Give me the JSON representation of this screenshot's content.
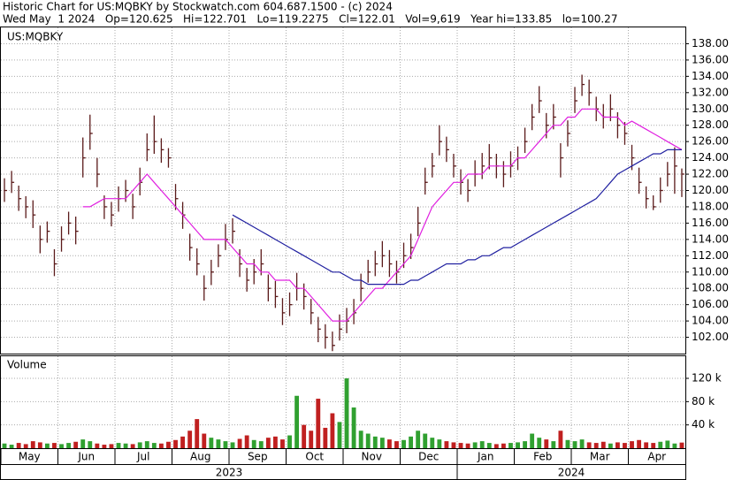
{
  "chart_data": {
    "type": "ohlc",
    "title": "Historic Chart for US:MQBKY by Stockwatch.com 604.687.1500 - (c) 2024",
    "subtitle": "Wed May  1 2024   Op=120.625   Hi=122.701   Lo=119.2275   Cl=122.01   Vol=9,619   Year hi=133.85   lo=100.27",
    "symbol": "US:MQBKY",
    "volume_title": "Volume",
    "months": [
      "May",
      null,
      null,
      null,
      null,
      null,
      null,
      null,
      "Jun",
      null,
      null,
      null,
      null,
      null,
      null,
      null,
      "Jul",
      null,
      null,
      null,
      null,
      null,
      null,
      null,
      "Aug",
      null,
      null,
      null,
      null,
      null,
      null,
      null,
      "Sep",
      null,
      null,
      null,
      null,
      null,
      null,
      null,
      "Oct",
      null,
      null,
      null,
      null,
      null,
      null,
      null,
      "Nov",
      null,
      null,
      null,
      null,
      null,
      null,
      null,
      "Dec",
      null,
      null,
      null,
      null,
      null,
      null,
      null,
      "Jan",
      null,
      null,
      null,
      null,
      null,
      null,
      null,
      "Feb",
      null,
      null,
      null,
      null,
      null,
      null,
      null,
      "Mar",
      null,
      null,
      null,
      null,
      null,
      null,
      null,
      "Apr",
      null,
      null,
      null,
      null,
      null,
      null,
      null
    ],
    "years": [
      "2023",
      null,
      null,
      null,
      null,
      null,
      null,
      null,
      null,
      null,
      null,
      null,
      null,
      null,
      null,
      null,
      null,
      null,
      null,
      null,
      null,
      null,
      null,
      null,
      null,
      null,
      null,
      null,
      null,
      null,
      null,
      null,
      null,
      null,
      null,
      null,
      null,
      null,
      null,
      null,
      null,
      null,
      null,
      null,
      null,
      null,
      null,
      null,
      null,
      null,
      null,
      null,
      null,
      null,
      null,
      null,
      null,
      null,
      null,
      null,
      null,
      null,
      null,
      null,
      "2024",
      null,
      null,
      null,
      null,
      null,
      null,
      null,
      null,
      null,
      null,
      null,
      null,
      null,
      null,
      null,
      null,
      null,
      null,
      null,
      null,
      null,
      null,
      null,
      null,
      null,
      null,
      null,
      null,
      null,
      null,
      null
    ],
    "high": [
      121.5,
      122.4,
      120.6,
      119.3,
      118.8,
      115.7,
      116.2,
      112.8,
      115.6,
      117.4,
      116.8,
      126.5,
      129.3,
      124.0,
      119.4,
      118.6,
      120.5,
      121.3,
      119.6,
      122.8,
      127.0,
      129.2,
      126.4,
      125.2,
      120.8,
      118.6,
      114.7,
      112.9,
      109.6,
      111.5,
      113.4,
      115.9,
      116.6,
      112.8,
      110.5,
      111.6,
      112.8,
      109.7,
      108.9,
      106.8,
      107.5,
      109.9,
      108.6,
      106.7,
      104.5,
      103.6,
      102.7,
      104.8,
      105.6,
      106.7,
      109.8,
      111.5,
      112.6,
      113.8,
      112.7,
      111.4,
      113.6,
      114.7,
      118.0,
      122.8,
      124.6,
      128.0,
      126.6,
      124.5,
      122.6,
      121.4,
      123.7,
      124.6,
      125.7,
      124.5,
      123.6,
      124.8,
      125.4,
      127.7,
      130.6,
      132.8,
      129.5,
      130.6,
      125.8,
      128.6,
      132.7,
      134.2,
      133.6,
      131.5,
      130.6,
      131.8,
      129.6,
      128.4,
      125.6,
      122.8,
      120.5,
      119.4,
      121.6,
      123.5,
      125.3,
      122.7
    ],
    "low": [
      118.6,
      119.7,
      117.5,
      116.6,
      115.4,
      112.3,
      113.6,
      109.5,
      112.5,
      114.6,
      113.4,
      121.6,
      125.0,
      120.4,
      116.5,
      115.6,
      117.4,
      118.6,
      116.5,
      119.4,
      123.6,
      124.5,
      123.4,
      122.8,
      117.6,
      115.3,
      111.4,
      109.6,
      106.5,
      108.4,
      110.6,
      112.7,
      113.5,
      109.4,
      107.6,
      108.5,
      109.6,
      106.4,
      105.6,
      103.5,
      104.6,
      106.5,
      105.4,
      103.6,
      101.4,
      100.6,
      100.3,
      101.6,
      102.5,
      103.6,
      106.4,
      108.7,
      109.5,
      110.6,
      109.4,
      108.6,
      110.5,
      111.6,
      114.4,
      119.5,
      121.6,
      124.3,
      123.5,
      121.6,
      119.5,
      118.6,
      120.5,
      121.4,
      122.6,
      121.5,
      120.4,
      121.6,
      122.5,
      124.6,
      127.4,
      129.5,
      126.4,
      127.5,
      121.6,
      125.4,
      129.5,
      131.6,
      130.4,
      128.5,
      127.6,
      128.5,
      126.4,
      125.6,
      122.5,
      119.6,
      117.8,
      117.6,
      118.5,
      120.5,
      119.6,
      119.2
    ],
    "close": [
      120,
      121,
      119,
      118,
      117,
      114,
      115,
      111,
      114,
      116,
      115,
      124,
      127,
      122,
      118,
      117,
      119,
      120,
      118,
      121,
      125,
      126,
      125,
      124,
      119,
      117,
      113,
      111,
      108,
      110,
      112,
      114,
      115,
      111,
      109,
      110,
      111,
      108,
      107,
      105,
      106,
      108,
      107,
      105,
      103,
      102,
      101,
      103,
      104,
      105,
      108,
      110,
      111,
      112,
      111,
      110,
      112,
      113,
      116,
      121,
      123,
      126,
      125,
      123,
      121,
      120,
      122,
      123,
      124,
      123,
      122,
      123,
      124,
      126,
      129,
      131,
      128,
      129,
      124,
      127,
      131,
      133,
      132,
      130,
      129,
      130,
      128,
      127,
      124,
      121,
      119,
      118,
      120,
      122,
      123,
      122.01
    ],
    "ma_short": {
      "color": "#e020e0",
      "values": [
        null,
        null,
        null,
        null,
        null,
        null,
        null,
        null,
        null,
        null,
        null,
        118,
        118,
        118.5,
        119,
        119,
        119,
        119,
        120,
        121,
        122,
        121,
        120,
        119,
        118,
        117,
        116,
        115,
        114,
        114,
        114,
        114,
        113,
        112,
        111,
        111,
        110,
        110,
        109,
        109,
        109,
        108,
        108,
        107,
        106,
        105,
        104,
        104,
        104,
        105,
        106,
        107,
        108,
        108,
        109,
        110,
        111,
        112,
        114,
        116,
        118,
        119,
        120,
        121,
        121,
        122,
        122,
        122,
        123,
        123,
        123,
        123,
        124,
        124,
        125,
        126,
        127,
        128,
        128,
        129,
        129,
        130,
        130,
        130,
        129,
        129,
        129,
        128,
        128.5,
        128,
        127.5,
        127,
        126.5,
        126,
        125.5,
        125
      ]
    },
    "ma_long": {
      "color": "#2020a0",
      "values": [
        null,
        null,
        null,
        null,
        null,
        null,
        null,
        null,
        null,
        null,
        null,
        null,
        null,
        null,
        null,
        null,
        null,
        null,
        null,
        null,
        null,
        null,
        null,
        null,
        null,
        null,
        null,
        null,
        null,
        null,
        null,
        null,
        117,
        116.5,
        116,
        115.5,
        115,
        114.5,
        114,
        113.5,
        113,
        112.5,
        112,
        111.5,
        111,
        110.5,
        110,
        110,
        109.5,
        109,
        109,
        108.5,
        108.5,
        108.5,
        108.5,
        108.5,
        108.5,
        109,
        109,
        109.5,
        110,
        110.5,
        111,
        111,
        111,
        111.5,
        111.5,
        112,
        112,
        112.5,
        113,
        113,
        113.5,
        114,
        114.5,
        115,
        115.5,
        116,
        116.5,
        117,
        117.5,
        118,
        118.5,
        119,
        120,
        121,
        122,
        122.5,
        123,
        123.5,
        124,
        124.5,
        124.5,
        125,
        125,
        125
      ]
    },
    "bar_color": "#5a1a1a",
    "volume": [
      8000,
      6000,
      9000,
      7000,
      12000,
      10000,
      8000,
      9000,
      7000,
      9000,
      11000,
      15000,
      12000,
      8000,
      6000,
      7000,
      9000,
      8000,
      7000,
      10000,
      12000,
      9000,
      8000,
      11000,
      14000,
      20000,
      30000,
      50000,
      25000,
      18000,
      15000,
      12000,
      10000,
      16000,
      22000,
      14000,
      12000,
      18000,
      20000,
      15000,
      22000,
      90000,
      40000,
      30000,
      85000,
      35000,
      60000,
      45000,
      120000,
      70000,
      30000,
      25000,
      20000,
      18000,
      15000,
      12000,
      14000,
      20000,
      30000,
      25000,
      18000,
      15000,
      12000,
      10000,
      9000,
      8000,
      10000,
      12000,
      9000,
      7000,
      8000,
      9000,
      10000,
      12000,
      25000,
      18000,
      15000,
      12000,
      30000,
      14000,
      12000,
      15000,
      10000,
      9000,
      11000,
      8000,
      10000,
      9000,
      12000,
      14000,
      10000,
      9000,
      11000,
      13000,
      8000,
      9619
    ],
    "up_color": "#30a030",
    "down_color": "#c02020",
    "ylim": [
      100,
      140
    ],
    "yticks": [
      {
        "value": 102,
        "label": "102.00"
      },
      {
        "value": 104,
        "label": "104.00"
      },
      {
        "value": 106,
        "label": "106.00"
      },
      {
        "value": 108,
        "label": "108.00"
      },
      {
        "value": 110,
        "label": "110.00"
      },
      {
        "value": 112,
        "label": "112.00"
      },
      {
        "value": 114,
        "label": "114.00"
      },
      {
        "value": 116,
        "label": "116.00"
      },
      {
        "value": 118,
        "label": "118.00"
      },
      {
        "value": 120,
        "label": "120.00"
      },
      {
        "value": 122,
        "label": "122.00"
      },
      {
        "value": 124,
        "label": "124.00"
      },
      {
        "value": 126,
        "label": "126.00"
      },
      {
        "value": 128,
        "label": "128.00"
      },
      {
        "value": 130,
        "label": "130.00"
      },
      {
        "value": 132,
        "label": "132.00"
      },
      {
        "value": 134,
        "label": "134.00"
      },
      {
        "value": 136,
        "label": "136.00"
      },
      {
        "value": 138,
        "label": "138.00"
      }
    ],
    "vlim": [
      0,
      158000
    ],
    "vticks": [
      {
        "value": 40000,
        "label": "40 k"
      },
      {
        "value": 80000,
        "label": "80 k"
      },
      {
        "value": 120000,
        "label": "120 k"
      }
    ],
    "grid": true
  }
}
